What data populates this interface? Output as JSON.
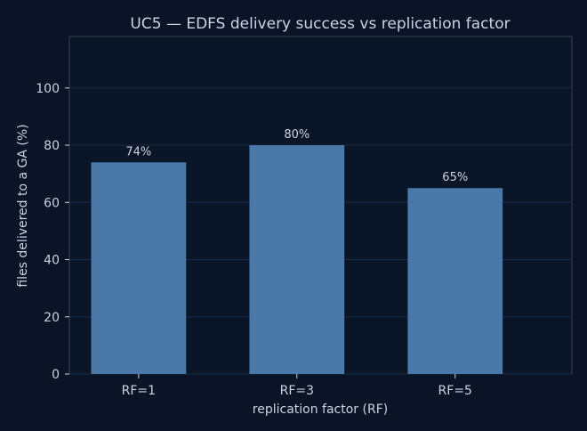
{
  "chart_data": {
    "type": "bar",
    "title": "UC5 — EDFS delivery success vs replication factor",
    "xlabel": "replication factor (RF)",
    "ylabel": "files delivered to a GA (%)",
    "categories": [
      "RF=1",
      "RF=3",
      "RF=5"
    ],
    "values": [
      74,
      80,
      65
    ],
    "data_labels": [
      "74%",
      "80%",
      "65%"
    ],
    "ylim": [
      0,
      118
    ],
    "yticks": [
      0,
      20,
      40,
      60,
      80,
      100
    ],
    "grid": true,
    "legend": "none",
    "colors": {
      "background": "#0b1426",
      "bar": "#4a78a8",
      "text": "#c9d3e3",
      "grid": "#1a2b45",
      "axis": "#334560"
    }
  }
}
